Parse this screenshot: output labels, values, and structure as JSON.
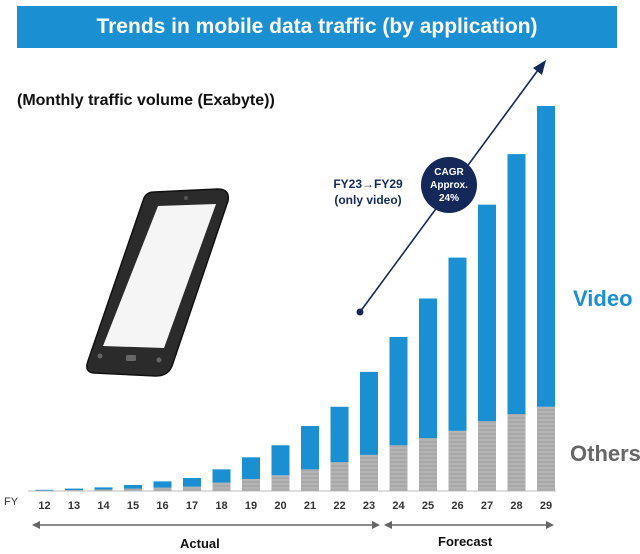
{
  "title": "Trends in mobile data traffic (by application)",
  "unit_label": "(Monthly traffic volume (Exabyte))",
  "x_prefix": "FY",
  "annotation": {
    "line1": "FY23→FY29",
    "line2": "(only video)"
  },
  "cagr": {
    "line1": "CAGR",
    "line2": "Approx.",
    "line3": "24%"
  },
  "periods": {
    "actual": "Actual",
    "forecast": "Forecast"
  },
  "colors": {
    "banner": "#1a8fd1",
    "video": "#1a8fd1",
    "others": "#a8a8a8",
    "navy": "#14295a",
    "others_text": "#666666"
  },
  "chart_data": {
    "type": "bar",
    "stacked": true,
    "categories": [
      "12",
      "13",
      "14",
      "15",
      "16",
      "17",
      "18",
      "19",
      "20",
      "21",
      "22",
      "23",
      "24",
      "25",
      "26",
      "27",
      "28",
      "29"
    ],
    "series": [
      {
        "name": "Others",
        "values": [
          0.2,
          0.4,
          0.6,
          1.0,
          1.4,
          1.8,
          3.5,
          5.0,
          6.5,
          9.0,
          12.0,
          15.0,
          19.0,
          22.0,
          25.0,
          29.0,
          32.0,
          35.0
        ]
      },
      {
        "name": "Video",
        "values": [
          0.3,
          0.6,
          0.9,
          1.5,
          2.6,
          3.6,
          5.5,
          9.0,
          12.5,
          18.0,
          23.0,
          34.5,
          45.0,
          58.0,
          72.0,
          90.0,
          108.0,
          125.0
        ]
      }
    ],
    "ylim": [
      0,
      160
    ],
    "legend_placement": "right",
    "grid": false
  }
}
